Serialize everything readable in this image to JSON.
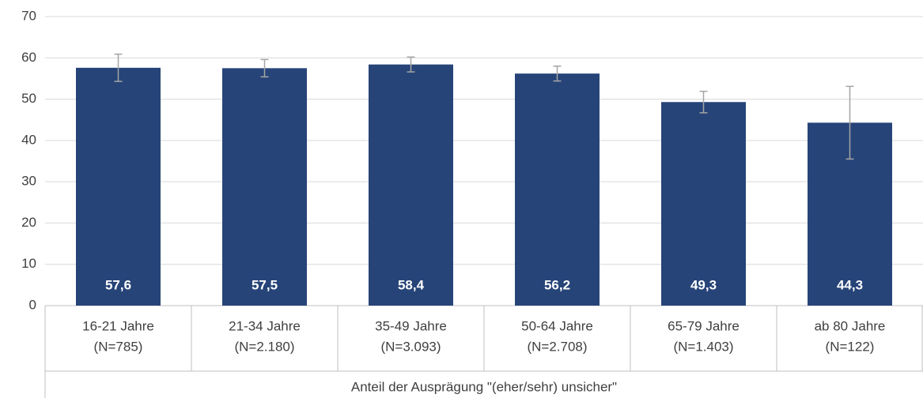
{
  "chart_data": {
    "type": "bar",
    "categories": [
      [
        "16-21 Jahre",
        "(N=785)"
      ],
      [
        "21-34 Jahre",
        "(N=2.180)"
      ],
      [
        "35-49 Jahre",
        "(N=3.093)"
      ],
      [
        "50-64 Jahre",
        "(N=2.708)"
      ],
      [
        "65-79 Jahre",
        "(N=1.403)"
      ],
      [
        "ab 80 Jahre",
        "(N=122)"
      ]
    ],
    "values": [
      57.6,
      57.5,
      58.4,
      56.2,
      49.3,
      44.3
    ],
    "value_labels": [
      "57,6",
      "57,5",
      "58,4",
      "56,2",
      "49,3",
      "44,3"
    ],
    "errors": [
      3.3,
      2.1,
      1.8,
      1.8,
      2.6,
      8.8
    ],
    "color": "#264478",
    "error_color": "#a5a5a5",
    "x_label": "Anteil der Ausprägung \"(eher/sehr) unsicher\"",
    "ylim": [
      0,
      70
    ],
    "yticks": [
      0,
      10,
      20,
      30,
      40,
      50,
      60,
      70
    ],
    "grid": true
  }
}
